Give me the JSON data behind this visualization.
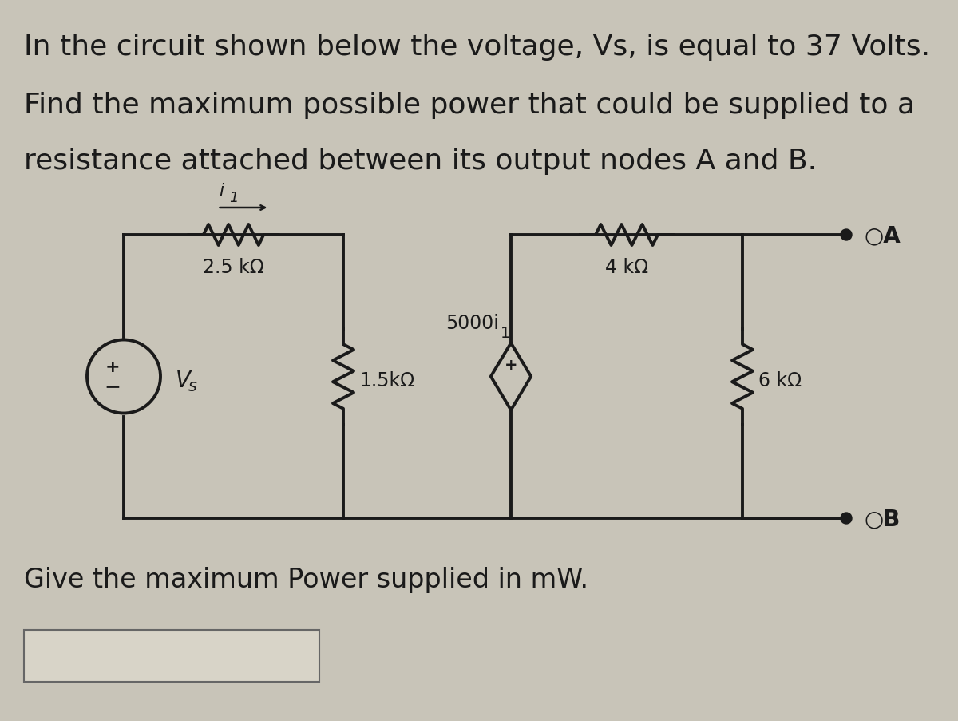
{
  "title_line1": "In the circuit shown below the voltage, Vs, is equal to 37 Volts.",
  "title_line2": "Find the maximum possible power that could be supplied to a",
  "title_line3": "resistance attached between its output nodes A and B.",
  "footer_text": "Give the maximum Power supplied in mW.",
  "background_color": "#c8c4b8",
  "text_color": "#1a1a1a",
  "line_color": "#1a1a1a",
  "font_size_title": 26,
  "font_size_labels": 17,
  "font_size_footer": 24,
  "circuit": {
    "vs_label": "V",
    "vs_sub": "s",
    "r1_label": "2.5 kΩ",
    "r2_label": "1.5kΩ",
    "r3_label": "4 kΩ",
    "r4_label": "6 kΩ",
    "dep_source_label": "5000i",
    "dep_source_sub": "1",
    "i1_label": "i",
    "i1_sub": "1",
    "node_a_label": "A",
    "node_b_label": "B"
  }
}
